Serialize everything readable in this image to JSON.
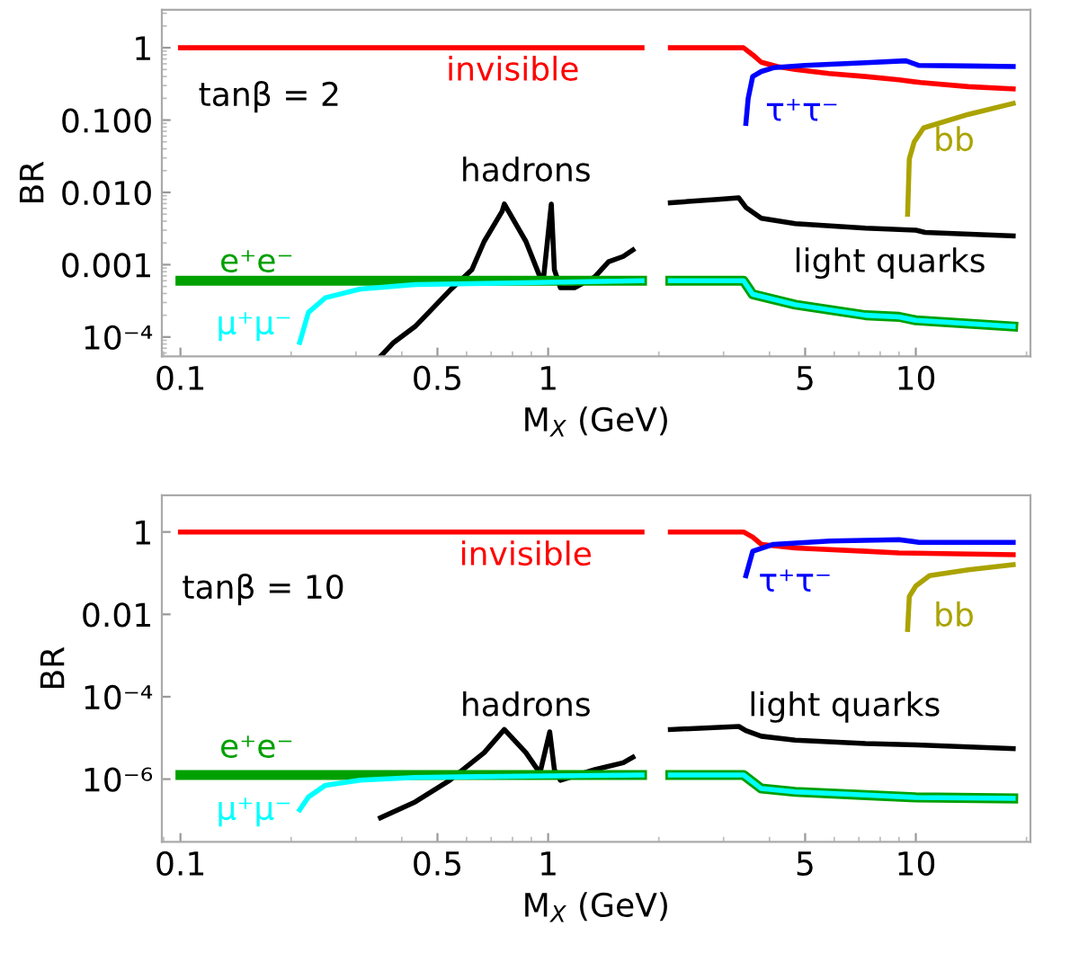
{
  "chart_data": [
    {
      "type": "line",
      "xlabel": "M$_{X}$ (GeV)",
      "ylabel": "BR",
      "log": "xy",
      "grid": false,
      "legend": false,
      "xlim": [
        0.089,
        20.5
      ],
      "xticks": [
        0.1,
        0.5,
        1,
        5,
        10
      ],
      "ylim": [
        5.4e-05,
        3.36
      ],
      "yticks": [
        1,
        {
          "value": 0.1,
          "label": "0.100"
        },
        {
          "value": 0.01,
          "label": "0.010"
        },
        0.001,
        {
          "value": 0.0001,
          "label": "10⁻⁴"
        }
      ],
      "series": [
        {
          "name": "invisible",
          "color": "#ff0000",
          "x": [
            0.1,
            1.8,
            2.0,
            2.15,
            3.4,
            3.6,
            3.8,
            4.2,
            4.7,
            5.8,
            7.3,
            9.0,
            10.3,
            13.9,
            18.4
          ],
          "values": [
            1,
            1,
            null,
            1,
            1,
            0.8,
            0.63,
            0.55,
            0.5,
            0.44,
            0.4,
            0.36,
            0.33,
            0.29,
            0.27
          ]
        },
        {
          "name": "τ⁺τ⁻",
          "color": "#0000ff",
          "x": [
            3.45,
            3.5,
            3.6,
            3.8,
            4.1,
            5.0,
            5.85,
            7.3,
            9.4,
            10.2,
            13.9,
            18.4
          ],
          "values": [
            0.09,
            0.2,
            0.4,
            0.47,
            0.53,
            0.57,
            0.59,
            0.62,
            0.66,
            0.57,
            0.56,
            0.55
          ]
        },
        {
          "name": "bb",
          "color": "#aaa300",
          "x": [
            9.5,
            9.6,
            9.9,
            10.5,
            13.9,
            18.4
          ],
          "values": [
            0.005,
            0.029,
            0.05,
            0.078,
            0.12,
            0.17
          ]
        },
        {
          "name": "hadrons",
          "color": "#000000",
          "x": [
            0.35,
            0.38,
            0.435,
            0.54,
            0.62,
            0.67,
            0.75,
            0.76,
            0.87,
            0.95,
            0.97,
            1.02,
            1.04,
            1.08,
            1.18,
            1.34,
            1.46,
            1.6,
            1.7
          ],
          "values": [
            5.4e-05,
            8.4e-05,
            0.00014,
            0.00044,
            0.00085,
            0.0021,
            0.0055,
            0.0069,
            0.0021,
            0.00068,
            0.0006,
            0.0069,
            0.00085,
            0.00048,
            0.00048,
            0.00068,
            0.0011,
            0.0013,
            0.0016
          ]
        },
        {
          "name": "light quarks",
          "color": "#000000",
          "x": [
            2.15,
            2.9,
            3.3,
            3.45,
            3.8,
            4.7,
            7.3,
            10.0,
            10.6,
            18.4
          ],
          "values": [
            0.0072,
            0.008,
            0.0084,
            0.0062,
            0.0044,
            0.0037,
            0.0032,
            0.003,
            0.0028,
            0.0025
          ]
        },
        {
          "name": "e⁺e⁻",
          "color": "#00a000",
          "x": [
            0.1,
            1.8,
            2.0,
            2.15,
            3.4,
            3.6,
            4.7,
            7.3,
            9.0,
            10.0,
            18.4
          ],
          "values": [
            0.0006,
            0.0006,
            null,
            0.0006,
            0.0006,
            0.00039,
            0.00028,
            0.0002,
            0.00019,
            0.00017,
            0.00014
          ]
        },
        {
          "name": "μ⁺μ⁻",
          "color": "#00ffff",
          "x": [
            0.211,
            0.223,
            0.248,
            0.308,
            0.435,
            1.0,
            1.8,
            2.0,
            2.15,
            3.4,
            3.6,
            4.7,
            7.3,
            9.0,
            10.0,
            18.4
          ],
          "values": [
            8.4e-05,
            0.00022,
            0.00035,
            0.00046,
            0.00053,
            0.00057,
            0.0006,
            null,
            0.0006,
            0.0006,
            0.00039,
            0.00028,
            0.0002,
            0.00019,
            0.00017,
            0.00014
          ]
        }
      ],
      "annotations": [
        "tanβ = 2"
      ]
    },
    {
      "type": "line",
      "xlabel": "M$_{X}$ (GeV)",
      "ylabel": "BR",
      "log": "xy",
      "grid": false,
      "legend": false,
      "xlim": [
        0.089,
        20.5
      ],
      "xticks": [
        0.1,
        0.5,
        1,
        5,
        10
      ],
      "ylim": [
        3e-08,
        7.8
      ],
      "yticks": [
        1,
        0.01,
        {
          "value": 0.0001,
          "label": "10⁻⁴"
        },
        {
          "value": 1e-06,
          "label": "10⁻⁶"
        }
      ],
      "series": [
        {
          "name": "invisible",
          "color": "#ff0000",
          "x": [
            0.1,
            1.8,
            2.0,
            2.15,
            3.4,
            3.6,
            3.8,
            4.7,
            7.3,
            9.0,
            18.4
          ],
          "values": [
            1,
            1,
            null,
            1,
            1,
            0.75,
            0.5,
            0.41,
            0.34,
            0.31,
            0.28
          ]
        },
        {
          "name": "τ⁺τ⁻",
          "color": "#0000ff",
          "x": [
            3.45,
            3.6,
            4.1,
            5.85,
            9.0,
            10.2,
            18.4
          ],
          "values": [
            0.087,
            0.34,
            0.5,
            0.6,
            0.65,
            0.56,
            0.56
          ]
        },
        {
          "name": "bb",
          "color": "#aaa300",
          "x": [
            9.5,
            9.6,
            10.0,
            10.9,
            13.9,
            18.4
          ],
          "values": [
            0.0043,
            0.027,
            0.049,
            0.087,
            0.12,
            0.16
          ]
        },
        {
          "name": "hadrons",
          "color": "#000000",
          "x": [
            0.35,
            0.435,
            0.54,
            0.67,
            0.76,
            0.87,
            0.95,
            1.01,
            1.04,
            1.08,
            1.34,
            1.6,
            1.7
          ],
          "values": [
            1.15e-07,
            2.8e-07,
            9.4e-07,
            4.4e-06,
            1.6e-05,
            4.4e-06,
            1.4e-06,
            1.4e-05,
            1.7e-06,
            9.4e-07,
            1.7e-06,
            2.5e-06,
            3.4e-06
          ]
        },
        {
          "name": "light quarks",
          "color": "#000000",
          "x": [
            2.15,
            3.3,
            3.45,
            3.8,
            4.7,
            7.3,
            10.0,
            18.4
          ],
          "values": [
            1.6e-05,
            1.9e-05,
            1.5e-05,
            1.1e-05,
            8.8e-06,
            7.3e-06,
            6.8e-06,
            5.5e-06
          ]
        },
        {
          "name": "e⁺e⁻",
          "color": "#00a000",
          "x": [
            0.1,
            1.8,
            2.0,
            2.15,
            3.4,
            3.8,
            4.7,
            7.3,
            10.0,
            18.4
          ],
          "values": [
            1.26e-06,
            1.26e-06,
            null,
            1.26e-06,
            1.26e-06,
            5.9e-07,
            4.9e-07,
            4.1e-07,
            3.6e-07,
            3.4e-07
          ]
        },
        {
          "name": "μ⁺μ⁻",
          "color": "#00ffff",
          "x": [
            0.211,
            0.223,
            0.248,
            0.308,
            0.435,
            1.0,
            1.8,
            2.0,
            2.15,
            3.4,
            3.8,
            4.7,
            7.3,
            10.0,
            18.4
          ],
          "values": [
            1.8e-07,
            3.7e-07,
            7.1e-07,
            9.4e-07,
            1.1e-06,
            1.2e-06,
            1.26e-06,
            null,
            1.26e-06,
            1.26e-06,
            5.9e-07,
            4.9e-07,
            4.1e-07,
            3.6e-07,
            3.4e-07
          ]
        }
      ],
      "annotations": [
        "tanβ = 10"
      ]
    }
  ]
}
